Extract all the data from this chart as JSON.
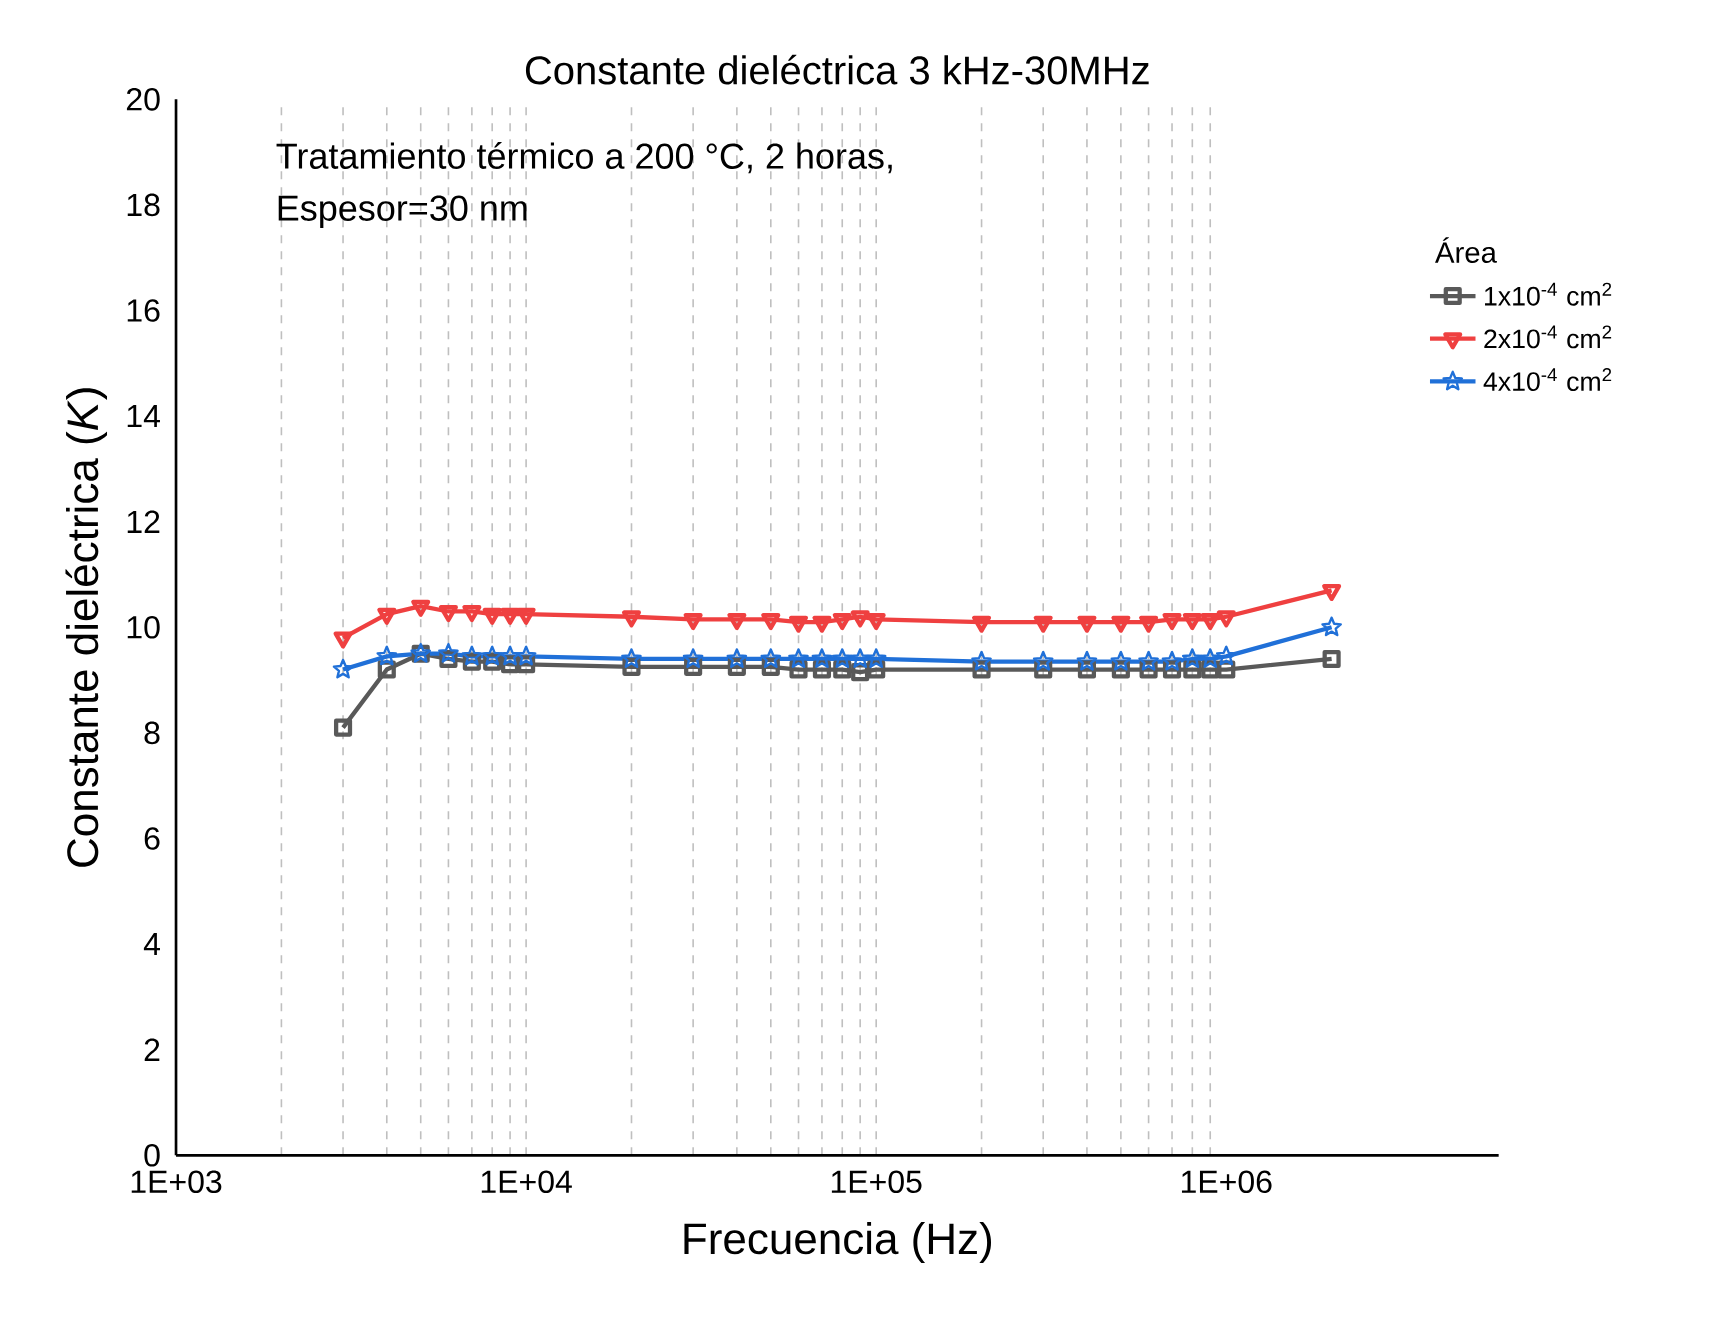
{
  "chart_data": {
    "type": "line",
    "title": "Constante dieléctrica 3 kHz-30MHz",
    "xlabel": "Frecuencia (Hz)",
    "ylabel": "Constante dieléctrica (*K*)",
    "legend_title": "Área",
    "annotations": [
      "Tratamiento térmico a 200 °C, 2 horas,",
      "Espesor=30 nm"
    ],
    "x": [
      3000,
      4000,
      5000,
      6000,
      7000,
      8000,
      9000,
      10000,
      20000,
      30000,
      40000,
      50000,
      60000,
      70000,
      80000,
      90000,
      100000,
      200000,
      300000,
      400000,
      500000,
      600000,
      700000,
      800000,
      900000,
      1000000,
      2000000
    ],
    "series": [
      {
        "name": "1x10$^{-4}$ cm$^{2}$",
        "color": "#595959",
        "marker": "square",
        "values": [
          8.1,
          9.2,
          9.5,
          9.4,
          9.35,
          9.35,
          9.3,
          9.3,
          9.25,
          9.25,
          9.25,
          9.25,
          9.2,
          9.2,
          9.2,
          9.15,
          9.2,
          9.2,
          9.2,
          9.2,
          9.2,
          9.2,
          9.2,
          9.2,
          9.2,
          9.2,
          9.4
        ]
      },
      {
        "name": "2x10$^{-4}$ cm$^{2}$",
        "color": "#ef4040",
        "marker": "triangle",
        "values": [
          9.8,
          10.25,
          10.4,
          10.3,
          10.3,
          10.25,
          10.25,
          10.25,
          10.2,
          10.15,
          10.15,
          10.15,
          10.1,
          10.1,
          10.15,
          10.2,
          10.15,
          10.1,
          10.1,
          10.1,
          10.1,
          10.1,
          10.15,
          10.15,
          10.15,
          10.2,
          10.7
        ]
      },
      {
        "name": "4x10$^{-4}$ cm$^{2}$",
        "color": "#2070d8",
        "marker": "star",
        "values": [
          9.2,
          9.45,
          9.5,
          9.5,
          9.45,
          9.45,
          9.45,
          9.45,
          9.4,
          9.4,
          9.4,
          9.4,
          9.4,
          9.4,
          9.4,
          9.4,
          9.4,
          9.35,
          9.35,
          9.35,
          9.35,
          9.35,
          9.35,
          9.4,
          9.4,
          9.45,
          10.0
        ]
      }
    ],
    "log": "x",
    "grid": "x",
    "legend": "top right",
    "line_style": "solid",
    "xlim": [
      1000,
      6000000
    ],
    "xticks": [
      {
        "value": 1000,
        "label": "1E+03"
      },
      {
        "value": 10000,
        "label": "1E+04"
      },
      {
        "value": 100000,
        "label": "1E+05"
      },
      {
        "value": 1000000,
        "label": "1E+06"
      }
    ],
    "ylim": [
      0,
      20
    ],
    "yticks": [
      0,
      2,
      4,
      6,
      8,
      10,
      12,
      14,
      16,
      18,
      20
    ]
  }
}
